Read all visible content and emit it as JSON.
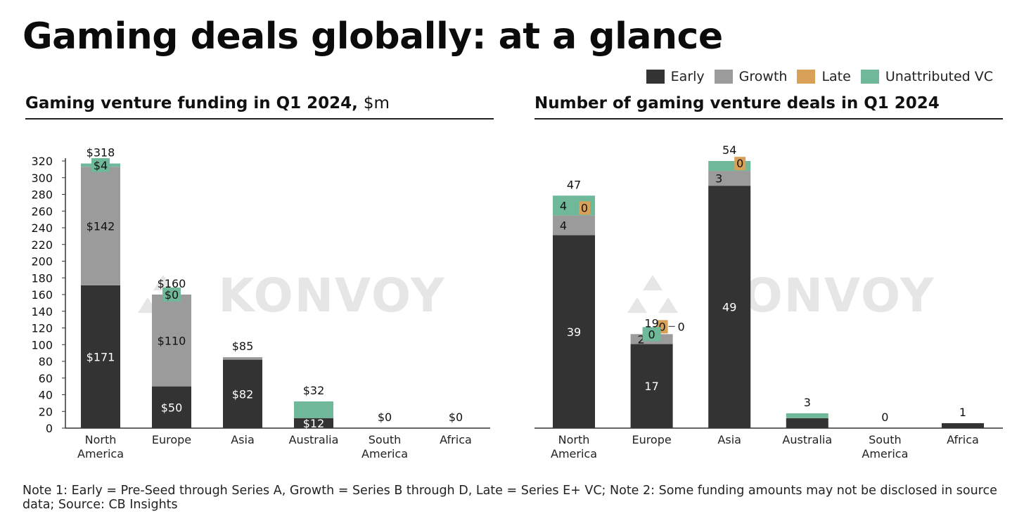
{
  "title": "Gaming deals globally: at a glance",
  "colors": {
    "early": "#333333",
    "growth": "#9b9b9b",
    "late": "#d9a158",
    "unattributed": "#6fb89a",
    "watermark": "#e6e6e6"
  },
  "legend": [
    {
      "key": "early",
      "label": "Early"
    },
    {
      "key": "growth",
      "label": "Growth"
    },
    {
      "key": "late",
      "label": "Late"
    },
    {
      "key": "unattributed",
      "label": "Unattributed VC"
    }
  ],
  "watermark": "KONVOY",
  "left_chart_title": {
    "bold": "Gaming venture funding in Q1 2024,",
    "unit": "$m"
  },
  "right_chart_title": {
    "bold": "Number of gaming venture deals in Q1 2024"
  },
  "note": "Note 1: Early = Pre-Seed through Series A, Growth = Series B through D, Late = Series E+ VC; Note 2: Some funding amounts may not be disclosed in source data; Source: CB Insights",
  "chart_data": [
    {
      "id": "funding",
      "type": "bar",
      "stacked": true,
      "title": "Gaming venture funding in Q1 2024, $m",
      "xlabel": "",
      "ylabel": "",
      "ylim": [
        0,
        320
      ],
      "yticks": [
        0,
        20,
        40,
        60,
        80,
        100,
        120,
        140,
        160,
        180,
        200,
        220,
        240,
        260,
        280,
        300,
        320
      ],
      "categories": [
        [
          "North",
          "America"
        ],
        [
          "Europe"
        ],
        [
          "Asia"
        ],
        [
          "Australia"
        ],
        [
          "South",
          "America"
        ],
        [
          "Africa"
        ]
      ],
      "series": [
        {
          "name": "Early",
          "key": "early",
          "values": [
            171,
            50,
            82,
            12,
            0,
            0
          ],
          "labels": [
            "$171",
            "$50",
            "$82",
            "$12",
            null,
            null
          ],
          "label_color": "#ffffff"
        },
        {
          "name": "Growth",
          "key": "growth",
          "values": [
            142,
            110,
            3,
            0,
            0,
            0
          ],
          "labels": [
            "$142",
            "$110",
            null,
            null,
            null,
            null
          ],
          "label_color": "#111111"
        },
        {
          "name": "Late",
          "key": "late",
          "values": [
            0,
            0,
            0,
            0,
            0,
            0
          ],
          "labels": [
            null,
            null,
            null,
            null,
            null,
            null
          ],
          "label_color": "#111111"
        },
        {
          "name": "Unattributed VC",
          "key": "unattributed",
          "values": [
            4,
            0,
            0,
            20,
            0,
            0
          ],
          "labels": [
            "$4",
            "$0",
            null,
            null,
            null,
            null
          ],
          "label_color": "#111111"
        }
      ],
      "totals": [
        "$318",
        "$160",
        "$85",
        "$32",
        "$0",
        "$0"
      ]
    },
    {
      "id": "deals",
      "type": "bar",
      "stacked": true,
      "title": "Number of gaming venture deals in Q1 2024",
      "xlabel": "",
      "ylabel": "",
      "ylim": [
        0,
        54
      ],
      "show_y_axis": false,
      "categories": [
        [
          "North",
          "America"
        ],
        [
          "Europe"
        ],
        [
          "Asia"
        ],
        [
          "Australia"
        ],
        [
          "South",
          "America"
        ],
        [
          "Africa"
        ]
      ],
      "series": [
        {
          "name": "Early",
          "key": "early",
          "values": [
            39,
            17,
            49,
            2,
            0,
            1
          ],
          "labels": [
            "39",
            "17",
            "49",
            null,
            null,
            null
          ],
          "label_color": "#ffffff"
        },
        {
          "name": "Growth",
          "key": "growth",
          "values": [
            4,
            2,
            3,
            0,
            0,
            0
          ],
          "labels": [
            "4",
            "2",
            "3",
            null,
            null,
            null
          ],
          "label_color": "#111111"
        },
        {
          "name": "Late",
          "key": "late",
          "values": [
            0,
            0,
            0,
            0,
            0,
            0
          ],
          "labels": [
            "0",
            "0",
            "0",
            null,
            null,
            null
          ],
          "label_color": "#111111"
        },
        {
          "name": "Unattributed VC",
          "key": "unattributed",
          "values": [
            4,
            0,
            2,
            1,
            0,
            0
          ],
          "labels": [
            "4",
            "0",
            null,
            null,
            null,
            null
          ],
          "label_color": "#111111"
        }
      ],
      "totals": [
        "47",
        "19",
        "54",
        "3",
        "0",
        "1"
      ]
    }
  ]
}
